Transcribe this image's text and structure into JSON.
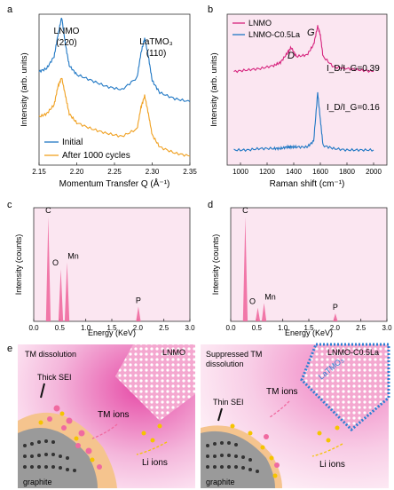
{
  "panels": {
    "a": {
      "letter": "a",
      "ylabel": "Intensity (arb. units)",
      "xlabel": "Momentum Transfer Q (Å⁻¹)",
      "peak1_label": [
        "LNMO",
        "(220)"
      ],
      "peak2_label": [
        "LaTMO₃",
        "(110)"
      ],
      "legend": [
        "Initial",
        "After 1000 cycles"
      ],
      "xticks": [
        "2.15",
        "2.20",
        "2.25",
        "2.30",
        "2.35"
      ]
    },
    "b": {
      "letter": "b",
      "ylabel": "Intensity (arb. units)",
      "xlabel": "Raman shift (cm⁻¹)",
      "legend": [
        "LNMO",
        "LNMO-C0.5La"
      ],
      "band_D": "D",
      "band_G": "G",
      "ratio1": "I_D/I_G=0.39",
      "ratio2": "I_D/I_G=0.16",
      "xticks": [
        "1000",
        "1200",
        "1400",
        "1600",
        "1800",
        "2000"
      ]
    },
    "c": {
      "letter": "c",
      "ylabel": "Intensity (counts)",
      "xlabel": "Energy (KeV)",
      "elements": [
        "C",
        "O",
        "Mn",
        "P"
      ],
      "xticks": [
        "0.0",
        "0.5",
        "1.0",
        "1.5",
        "2.0",
        "2.5",
        "3.0"
      ]
    },
    "d": {
      "letter": "d",
      "ylabel": "Intensity (counts)",
      "xlabel": "Energy (KeV)",
      "elements": [
        "C",
        "O",
        "Mn",
        "P"
      ],
      "xticks": [
        "0.0",
        "0.5",
        "1.0",
        "1.5",
        "2.0",
        "2.5",
        "3.0"
      ]
    },
    "e": {
      "letter": "e",
      "left": {
        "title": "TM dissolution",
        "badge": "LNMO",
        "sei": "Thick SEI",
        "tm_ions": "TM ions",
        "li_ions": "Li ions",
        "graphite": "graphite"
      },
      "right": {
        "title": [
          "Suppressed TM",
          "dissolution"
        ],
        "badge": "LNMO-C0.5La",
        "coating": "LaTMO₃",
        "sei": "Thin SEI",
        "tm_ions": "TM ions",
        "li_ions": "Li ions",
        "graphite": "graphite"
      }
    }
  },
  "colors": {
    "blue": "#1f77c4",
    "orange": "#f0a020",
    "magenta": "#d6247e",
    "pink_bar": "#f06aa0",
    "bg_pink": "#fbe6f1"
  },
  "chart_data": [
    {
      "type": "line",
      "panel": "a",
      "xlim": [
        2.15,
        2.35
      ],
      "series": [
        {
          "name": "Initial",
          "x": [
            2.15,
            2.16,
            2.17,
            2.175,
            2.18,
            2.185,
            2.19,
            2.2,
            2.22,
            2.24,
            2.26,
            2.28,
            2.285,
            2.29,
            2.295,
            2.3,
            2.31,
            2.33,
            2.35
          ],
          "y": [
            0.62,
            0.64,
            0.72,
            0.86,
            0.98,
            0.8,
            0.66,
            0.6,
            0.56,
            0.52,
            0.5,
            0.58,
            0.74,
            0.84,
            0.72,
            0.56,
            0.48,
            0.44,
            0.42
          ]
        },
        {
          "name": "After 1000 cycles",
          "x": [
            2.15,
            2.16,
            2.17,
            2.175,
            2.18,
            2.185,
            2.19,
            2.2,
            2.22,
            2.24,
            2.26,
            2.28,
            2.285,
            2.29,
            2.295,
            2.3,
            2.31,
            2.33,
            2.35
          ],
          "y": [
            0.32,
            0.34,
            0.4,
            0.52,
            0.58,
            0.46,
            0.34,
            0.28,
            0.24,
            0.21,
            0.19,
            0.24,
            0.38,
            0.46,
            0.34,
            0.2,
            0.12,
            0.08,
            0.06
          ]
        }
      ]
    },
    {
      "type": "line",
      "panel": "b",
      "xlim": [
        900,
        2100
      ],
      "series": [
        {
          "name": "LNMO",
          "x": [
            950,
            1050,
            1150,
            1250,
            1300,
            1350,
            1380,
            1420,
            1500,
            1550,
            1580,
            1600,
            1620,
            1700,
            1800,
            1900,
            2000
          ],
          "y": [
            0.62,
            0.63,
            0.64,
            0.66,
            0.68,
            0.74,
            0.78,
            0.72,
            0.73,
            0.8,
            0.92,
            0.86,
            0.72,
            0.65,
            0.64,
            0.63,
            0.62
          ]
        },
        {
          "name": "LNMO-C0.5La",
          "x": [
            950,
            1050,
            1150,
            1250,
            1300,
            1350,
            1380,
            1420,
            1500,
            1550,
            1580,
            1600,
            1620,
            1700,
            1800,
            1900,
            2000
          ],
          "y": [
            0.1,
            0.1,
            0.11,
            0.11,
            0.11,
            0.12,
            0.12,
            0.12,
            0.12,
            0.16,
            0.48,
            0.3,
            0.13,
            0.11,
            0.1,
            0.1,
            0.1
          ]
        }
      ]
    },
    {
      "type": "bar",
      "panel": "c",
      "xlim": [
        0,
        3
      ],
      "peaks": [
        {
          "label": "C",
          "x": 0.28,
          "y": 0.92
        },
        {
          "label": "O",
          "x": 0.52,
          "y": 0.46
        },
        {
          "label": "Mn",
          "x": 0.64,
          "y": 0.52
        },
        {
          "label": "P",
          "x": 2.01,
          "y": 0.13
        }
      ]
    },
    {
      "type": "bar",
      "panel": "d",
      "xlim": [
        0,
        3
      ],
      "peaks": [
        {
          "label": "C",
          "x": 0.28,
          "y": 0.92
        },
        {
          "label": "O",
          "x": 0.52,
          "y": 0.12
        },
        {
          "label": "Mn",
          "x": 0.64,
          "y": 0.16
        },
        {
          "label": "P",
          "x": 2.01,
          "y": 0.07
        }
      ]
    }
  ]
}
